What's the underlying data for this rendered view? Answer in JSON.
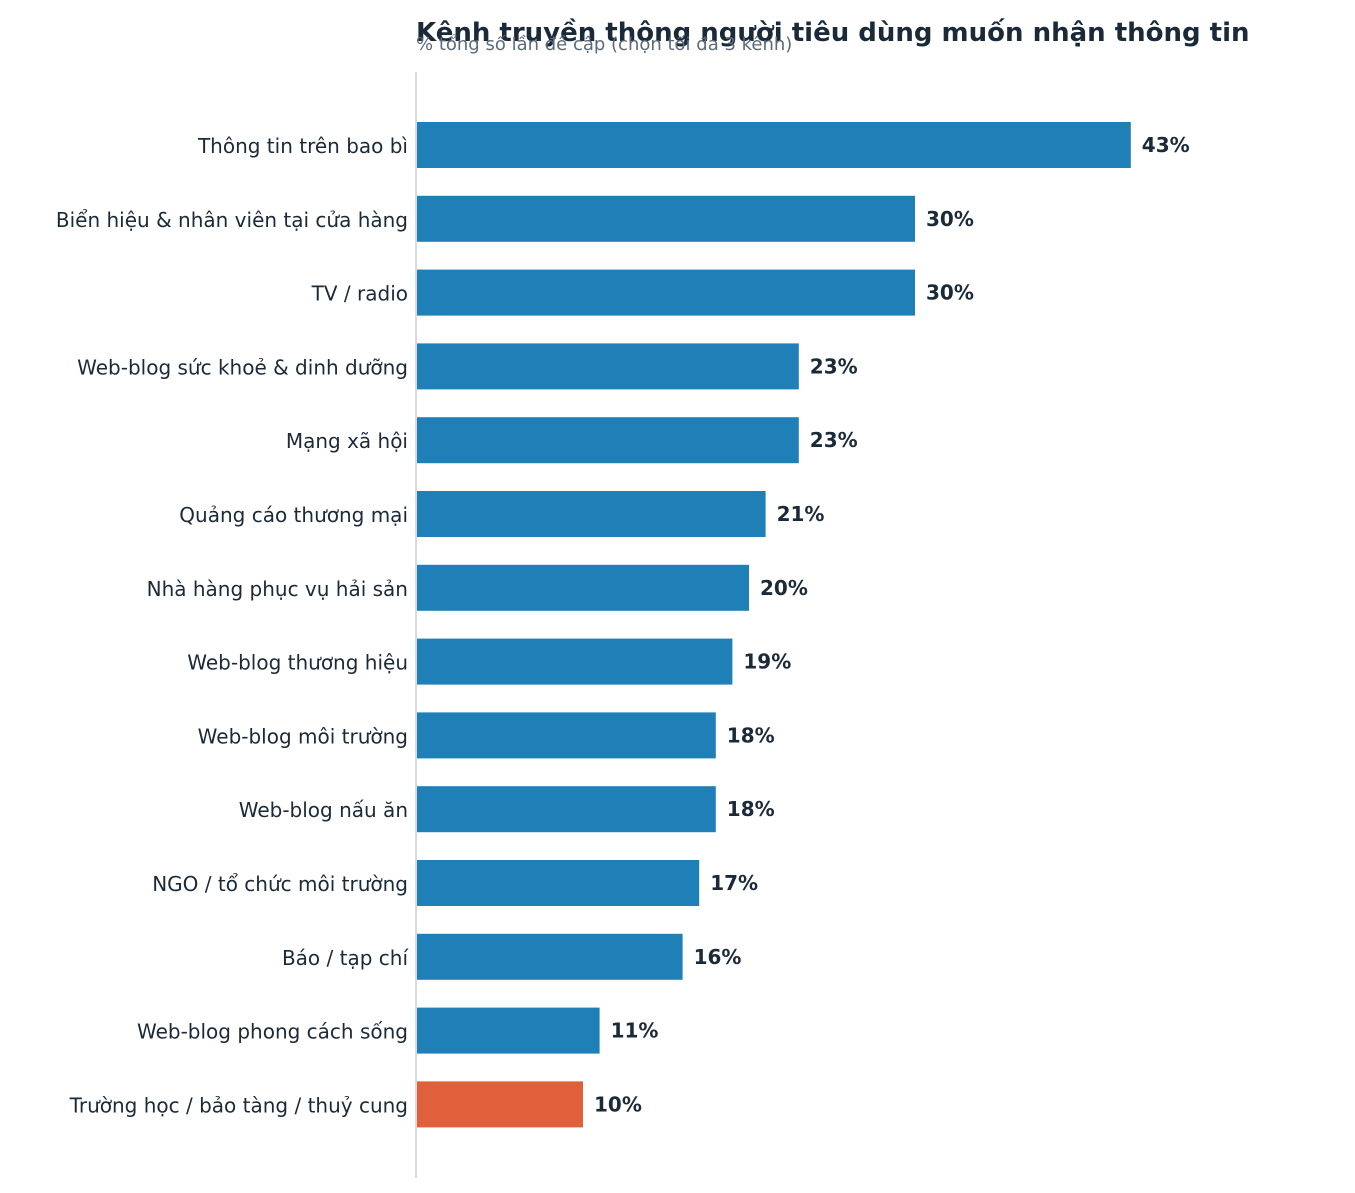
{
  "chart_data": {
    "type": "bar",
    "orientation": "horizontal",
    "title": "Kênh truyền thông người tiêu dùng muốn nhận thông tin",
    "subtitle": "% tổng số lần đề cập (chọn tối đa 3 kênh)",
    "categories": [
      "Thông tin trên bao bì",
      "Biển hiệu & nhân viên tại cửa hàng",
      "TV / radio",
      "Web-blog sức khoẻ & dinh dưỡng",
      "Mạng xã hội",
      "Quảng cáo thương mại",
      "Nhà hàng phục vụ hải sản",
      "Web-blog thương hiệu",
      "Web-blog môi trường",
      "Web-blog nấu ăn",
      "NGO / tổ chức môi trường",
      "Báo / tạp chí",
      "Web-blog phong cách sống",
      "Trường học / bảo tàng / thuỷ cung"
    ],
    "values": [
      43,
      30,
      30,
      23,
      23,
      21,
      20,
      19,
      18,
      18,
      17,
      16,
      11,
      10
    ],
    "value_labels": [
      "43%",
      "30%",
      "30%",
      "23%",
      "23%",
      "21%",
      "20%",
      "19%",
      "18%",
      "18%",
      "17%",
      "16%",
      "11%",
      "10%"
    ],
    "unit": "%",
    "xlim": [
      0,
      55
    ],
    "grid": false,
    "legend": "none",
    "colors": {
      "bar": "#1f80b8",
      "highlight": "#e0603b",
      "text": "#1b2a38",
      "subtitle": "#5b6b7a",
      "axis": "#d9d9d9"
    },
    "highlight_category": "Trường học / bảo tàng / thuỷ cung"
  }
}
